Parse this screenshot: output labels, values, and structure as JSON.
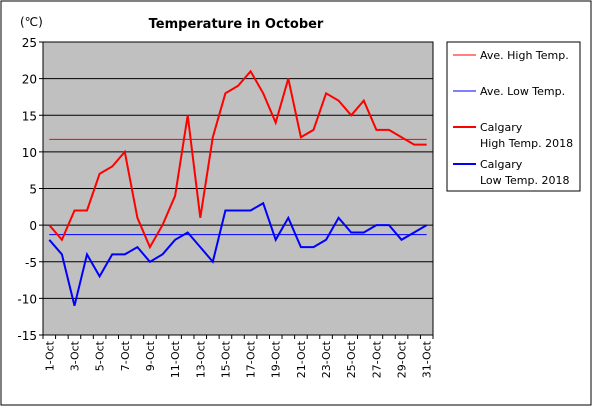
{
  "chart_data": {
    "type": "line",
    "title": "Temperature in October",
    "unit_label": "(℃)",
    "ylim": [
      -15,
      25
    ],
    "y_ticks": [
      25,
      20,
      15,
      10,
      5,
      0,
      -5,
      -10,
      -15
    ],
    "grid": true,
    "legend_position": "right",
    "x_categories": [
      "1-Oct",
      "2-Oct",
      "3-Oct",
      "4-Oct",
      "5-Oct",
      "6-Oct",
      "7-Oct",
      "8-Oct",
      "9-Oct",
      "10-Oct",
      "11-Oct",
      "12-Oct",
      "13-Oct",
      "14-Oct",
      "15-Oct",
      "16-Oct",
      "17-Oct",
      "18-Oct",
      "19-Oct",
      "20-Oct",
      "21-Oct",
      "22-Oct",
      "23-Oct",
      "24-Oct",
      "25-Oct",
      "26-Oct",
      "27-Oct",
      "28-Oct",
      "29-Oct",
      "30-Oct",
      "31-Oct"
    ],
    "x_tick_labels": [
      "1-Oct",
      "3-Oct",
      "5-Oct",
      "7-Oct",
      "9-Oct",
      "11-Oct",
      "13-Oct",
      "15-Oct",
      "17-Oct",
      "19-Oct",
      "21-Oct",
      "23-Oct",
      "25-Oct",
      "27-Oct",
      "29-Oct",
      "31-Oct"
    ],
    "reference_lines": [
      {
        "name": "Ave. High Temp.",
        "value": 11.7,
        "color": "#ff0000"
      },
      {
        "name": "Ave. Low Temp.",
        "value": -1.3,
        "color": "#0000ff"
      }
    ],
    "series": [
      {
        "name_lines": [
          "Calgary",
          "High Temp. 2018"
        ],
        "color": "#ff0000",
        "values": [
          0,
          -2,
          2,
          2,
          7,
          8,
          10,
          1,
          -3,
          0,
          4,
          15,
          1,
          12,
          18,
          19,
          21,
          18,
          14,
          20,
          12,
          13,
          18,
          17,
          15,
          17,
          13,
          13,
          12,
          11,
          11
        ]
      },
      {
        "name_lines": [
          "Calgary",
          "Low Temp. 2018"
        ],
        "color": "#0000ff",
        "values": [
          -2,
          -4,
          -11,
          -4,
          -7,
          -4,
          -4,
          -3,
          -5,
          -4,
          -2,
          -1,
          -3,
          -5,
          2,
          2,
          2,
          3,
          -2,
          1,
          -3,
          -3,
          -2,
          1,
          -1,
          -1,
          0,
          0,
          -2,
          -1,
          0
        ]
      }
    ]
  },
  "colors": {
    "plot_background": "#c0c0c0",
    "high": "#ff0000",
    "low": "#0000ff"
  }
}
